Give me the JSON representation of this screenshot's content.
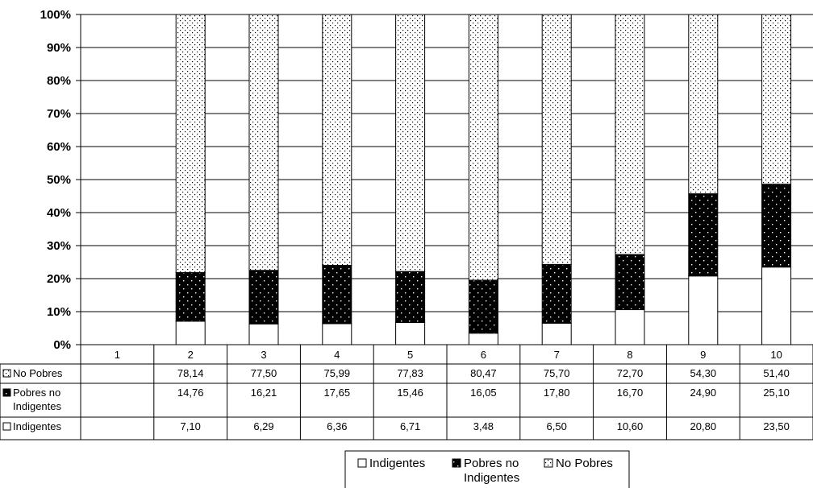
{
  "chart_data": {
    "type": "bar",
    "stacked": true,
    "normalized": true,
    "categories": [
      "1",
      "2",
      "3",
      "4",
      "5",
      "6",
      "7",
      "8",
      "9",
      "10"
    ],
    "series": [
      {
        "name": "Indigentes",
        "values": [
          null,
          7.1,
          6.29,
          6.36,
          6.71,
          3.48,
          6.5,
          10.6,
          20.8,
          23.5
        ],
        "labels": [
          "",
          "7,10",
          "6,29",
          "6,36",
          "6,71",
          "3,48",
          "6,50",
          "10,60",
          "20,80",
          "23,50"
        ],
        "fill": "white"
      },
      {
        "name": "Pobres no Indigentes",
        "name_lines": [
          "Pobres no",
          "Indigentes"
        ],
        "values": [
          null,
          14.76,
          16.21,
          17.65,
          15.46,
          16.05,
          17.8,
          16.7,
          24.9,
          25.1
        ],
        "labels": [
          "",
          "14,76",
          "16,21",
          "17,65",
          "15,46",
          "16,05",
          "17,80",
          "16,70",
          "24,90",
          "25,10"
        ],
        "fill": "black-dotted"
      },
      {
        "name": "No Pobres",
        "values": [
          null,
          78.14,
          77.5,
          75.99,
          77.83,
          80.47,
          75.7,
          72.7,
          54.3,
          51.4
        ],
        "labels": [
          "",
          "78,14",
          "77,50",
          "75,99",
          "77,83",
          "80,47",
          "75,70",
          "72,70",
          "54,30",
          "51,40"
        ],
        "fill": "white-dotted"
      }
    ],
    "y_ticks": [
      "0%",
      "10%",
      "20%",
      "30%",
      "40%",
      "50%",
      "60%",
      "70%",
      "80%",
      "90%",
      "100%"
    ],
    "ylim": [
      0,
      100
    ],
    "grid": true,
    "data_table": true,
    "legend": "bottom-center",
    "colors": {
      "bar_outline": "#000000",
      "gridline": "#000000",
      "background": "#ffffff"
    }
  }
}
